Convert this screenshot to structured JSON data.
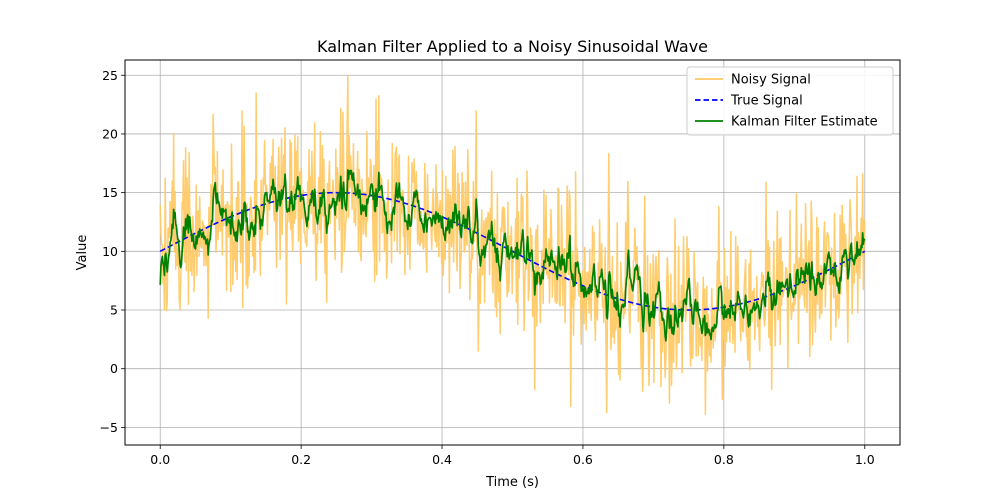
{
  "chart_data": {
    "type": "line",
    "title": "Kalman Filter Applied to a Noisy Sinusoidal Wave",
    "xlabel": "Time (s)",
    "ylabel": "Value",
    "xlim": [
      -0.05,
      1.05
    ],
    "ylim": [
      -6.5,
      26.3
    ],
    "xticks": [
      0.0,
      0.2,
      0.4,
      0.6,
      0.8,
      1.0
    ],
    "xtick_labels": [
      "0.0",
      "0.2",
      "0.4",
      "0.6",
      "0.8",
      "1.0"
    ],
    "yticks": [
      -5,
      0,
      5,
      10,
      15,
      20,
      25
    ],
    "ytick_labels": [
      "−5",
      "0",
      "5",
      "10",
      "15",
      "20",
      "25"
    ],
    "grid": true,
    "legend_position": "top-right",
    "true_signal_model": {
      "offset": 10,
      "amplitude": 5,
      "frequency_hz": 1
    },
    "noise_std_estimate": 3.5,
    "series": [
      {
        "name": "Noisy Signal",
        "color": "#ffc966",
        "style": "solid",
        "sample_count": 1000,
        "approx_range": [
          -4.8,
          25
        ]
      },
      {
        "name": "True Signal",
        "color": "#0000ff",
        "style": "dashed",
        "x": [
          0.0,
          0.1,
          0.25,
          0.4,
          0.5,
          0.6,
          0.75,
          0.9,
          1.0
        ],
        "values": [
          10.0,
          12.94,
          15.0,
          12.94,
          10.0,
          7.06,
          5.0,
          7.06,
          10.0
        ]
      },
      {
        "name": "Kalman Filter Estimate",
        "color": "#008000",
        "style": "solid",
        "sample_count": 1000,
        "approx_range": [
          -0.4,
          18.5
        ]
      }
    ]
  }
}
